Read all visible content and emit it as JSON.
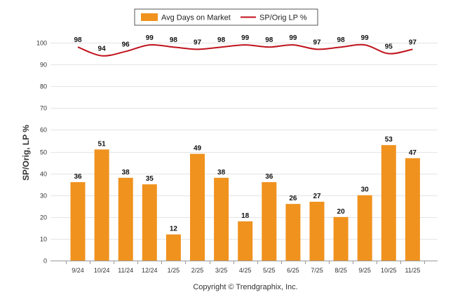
{
  "chart_data": {
    "type": "bar",
    "categories": [
      "9/24",
      "10/24",
      "11/24",
      "12/24",
      "1/25",
      "2/25",
      "3/25",
      "4/25",
      "5/25",
      "6/25",
      "7/25",
      "8/25",
      "9/25",
      "10/25",
      "11/25"
    ],
    "series": [
      {
        "name": "Avg Days on Market",
        "type": "bar",
        "color": "#f0921e",
        "values": [
          36,
          51,
          38,
          35,
          12,
          49,
          38,
          18,
          36,
          26,
          27,
          20,
          30,
          53,
          47
        ]
      },
      {
        "name": "SP/Orig LP %",
        "type": "line",
        "color": "#c0121b",
        "values": [
          98,
          94,
          96,
          99,
          98,
          97,
          98,
          99,
          98,
          99,
          97,
          98,
          99,
          95,
          97
        ]
      }
    ],
    "ylabel": "SP/Orig, LP %",
    "yticks": [
      0,
      10,
      20,
      30,
      40,
      50,
      60,
      70,
      80,
      90,
      100
    ],
    "ylim": [
      0,
      100
    ],
    "grid": true,
    "legend_position": "top-center"
  },
  "footer": {
    "copyright": "Copyright © Trendgraphix, Inc."
  }
}
